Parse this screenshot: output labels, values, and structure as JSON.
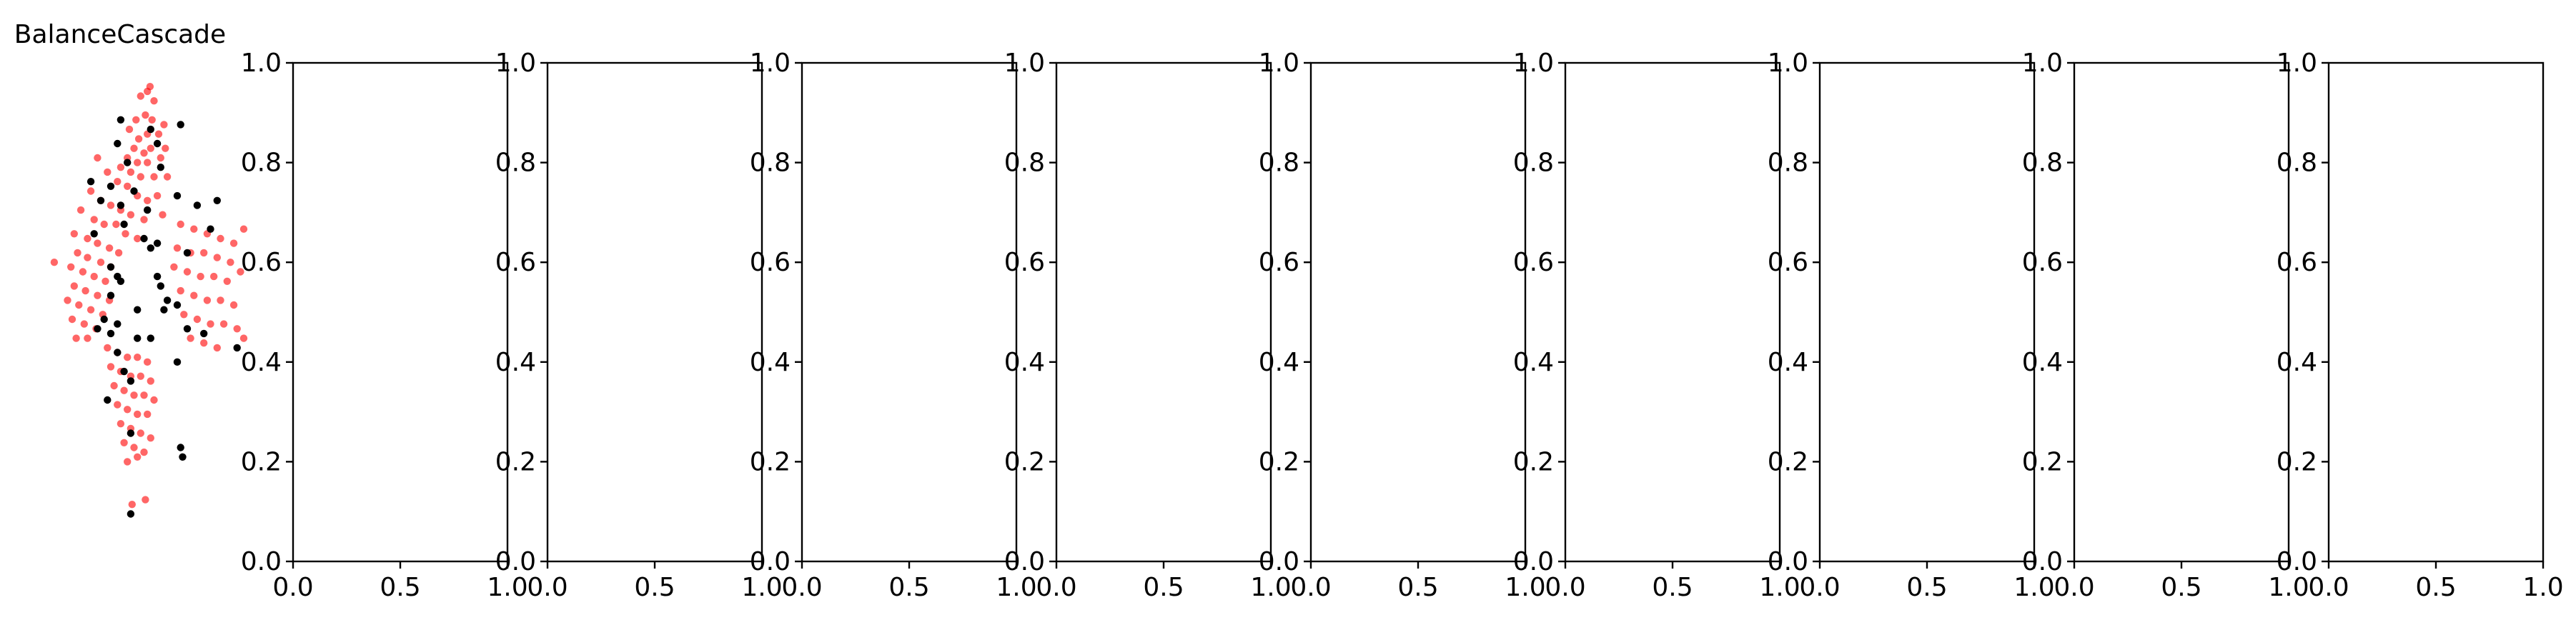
{
  "figure": {
    "background": "#ffffff"
  },
  "chart_data": [
    {
      "type": "scatter",
      "title": "BalanceCascade",
      "axis": "off",
      "xlim": [
        -1.85,
        1.45
      ],
      "ylim": [
        -0.05,
        1.0
      ],
      "colors": {
        "minority": "#000000",
        "majority": "#ff0000"
      },
      "series": [
        {
          "role": "majority",
          "color": "#ff0000",
          "alpha": 0.6,
          "points": [
            [
              -0.11,
              0.95
            ],
            [
              -0.25,
              0.93
            ],
            [
              -0.15,
              0.94
            ],
            [
              -0.05,
              0.92
            ],
            [
              -0.18,
              0.89
            ],
            [
              -0.32,
              0.88
            ],
            [
              -0.08,
              0.88
            ],
            [
              0.1,
              0.87
            ],
            [
              -0.42,
              0.86
            ],
            [
              -0.28,
              0.84
            ],
            [
              -0.15,
              0.85
            ],
            [
              0.02,
              0.85
            ],
            [
              -0.35,
              0.82
            ],
            [
              -0.2,
              0.81
            ],
            [
              -0.1,
              0.82
            ],
            [
              0.12,
              0.82
            ],
            [
              -0.45,
              0.8
            ],
            [
              -0.3,
              0.79
            ],
            [
              -0.15,
              0.79
            ],
            [
              0.05,
              0.8
            ],
            [
              -0.55,
              0.78
            ],
            [
              -0.4,
              0.77
            ],
            [
              -0.25,
              0.76
            ],
            [
              -0.05,
              0.76
            ],
            [
              0.15,
              0.76
            ],
            [
              -0.9,
              0.8
            ],
            [
              -0.75,
              0.77
            ],
            [
              -0.6,
              0.75
            ],
            [
              -0.45,
              0.74
            ],
            [
              -0.3,
              0.72
            ],
            [
              -0.15,
              0.71
            ],
            [
              0.0,
              0.72
            ],
            [
              -1.0,
              0.73
            ],
            [
              -0.85,
              0.71
            ],
            [
              -0.7,
              0.7
            ],
            [
              -0.55,
              0.69
            ],
            [
              -0.4,
              0.68
            ],
            [
              -0.2,
              0.67
            ],
            [
              0.08,
              0.68
            ],
            [
              -1.15,
              0.69
            ],
            [
              -0.95,
              0.67
            ],
            [
              -0.8,
              0.66
            ],
            [
              -0.62,
              0.66
            ],
            [
              -0.48,
              0.64
            ],
            [
              -0.3,
              0.63
            ],
            [
              -1.25,
              0.64
            ],
            [
              -1.05,
              0.63
            ],
            [
              -0.9,
              0.62
            ],
            [
              -0.72,
              0.61
            ],
            [
              -0.58,
              0.6
            ],
            [
              -1.2,
              0.6
            ],
            [
              -1.05,
              0.59
            ],
            [
              -0.85,
              0.58
            ],
            [
              -0.7,
              0.57
            ],
            [
              -1.3,
              0.57
            ],
            [
              -1.12,
              0.56
            ],
            [
              -0.95,
              0.55
            ],
            [
              -0.78,
              0.54
            ],
            [
              -1.55,
              0.58
            ],
            [
              -1.25,
              0.53
            ],
            [
              -1.08,
              0.52
            ],
            [
              -0.9,
              0.51
            ],
            [
              -0.72,
              0.5
            ],
            [
              -1.35,
              0.5
            ],
            [
              -1.18,
              0.49
            ],
            [
              -1.0,
              0.48
            ],
            [
              -0.82,
              0.47
            ],
            [
              -1.28,
              0.46
            ],
            [
              -1.1,
              0.45
            ],
            [
              -0.92,
              0.44
            ],
            [
              -1.22,
              0.42
            ],
            [
              -1.05,
              0.42
            ],
            [
              0.35,
              0.66
            ],
            [
              0.55,
              0.65
            ],
            [
              0.75,
              0.64
            ],
            [
              0.95,
              0.63
            ],
            [
              1.15,
              0.62
            ],
            [
              0.3,
              0.61
            ],
            [
              0.5,
              0.6
            ],
            [
              0.7,
              0.6
            ],
            [
              0.9,
              0.59
            ],
            [
              1.1,
              0.58
            ],
            [
              1.3,
              0.65
            ],
            [
              0.25,
              0.57
            ],
            [
              0.45,
              0.56
            ],
            [
              0.65,
              0.55
            ],
            [
              0.85,
              0.55
            ],
            [
              1.05,
              0.54
            ],
            [
              1.25,
              0.56
            ],
            [
              0.35,
              0.52
            ],
            [
              0.55,
              0.51
            ],
            [
              0.75,
              0.5
            ],
            [
              0.95,
              0.5
            ],
            [
              1.15,
              0.49
            ],
            [
              0.4,
              0.47
            ],
            [
              0.6,
              0.46
            ],
            [
              0.8,
              0.45
            ],
            [
              1.0,
              0.45
            ],
            [
              1.2,
              0.44
            ],
            [
              0.5,
              0.42
            ],
            [
              0.7,
              0.41
            ],
            [
              0.9,
              0.4
            ],
            [
              1.3,
              0.42
            ],
            [
              -0.75,
              0.4
            ],
            [
              -0.6,
              0.39
            ],
            [
              -0.45,
              0.38
            ],
            [
              -0.3,
              0.38
            ],
            [
              -0.15,
              0.37
            ],
            [
              -0.7,
              0.36
            ],
            [
              -0.55,
              0.35
            ],
            [
              -0.4,
              0.34
            ],
            [
              -0.25,
              0.34
            ],
            [
              -0.1,
              0.33
            ],
            [
              -0.65,
              0.32
            ],
            [
              -0.5,
              0.31
            ],
            [
              -0.35,
              0.3
            ],
            [
              -0.2,
              0.3
            ],
            [
              -0.05,
              0.29
            ],
            [
              -0.6,
              0.28
            ],
            [
              -0.45,
              0.27
            ],
            [
              -0.3,
              0.26
            ],
            [
              -0.15,
              0.26
            ],
            [
              -0.55,
              0.24
            ],
            [
              -0.4,
              0.23
            ],
            [
              -0.25,
              0.22
            ],
            [
              -0.1,
              0.21
            ],
            [
              -0.5,
              0.2
            ],
            [
              -0.35,
              0.19
            ],
            [
              -0.2,
              0.18
            ],
            [
              -0.45,
              0.16
            ],
            [
              -0.3,
              0.17
            ],
            [
              -0.38,
              0.07
            ],
            [
              -0.18,
              0.08
            ]
          ]
        },
        {
          "role": "minority",
          "color": "#000000",
          "alpha": 1.0,
          "points": [
            [
              -0.55,
              0.88
            ],
            [
              0.35,
              0.87
            ],
            [
              -0.1,
              0.86
            ],
            [
              -0.6,
              0.83
            ],
            [
              0.0,
              0.83
            ],
            [
              -0.45,
              0.79
            ],
            [
              0.05,
              0.78
            ],
            [
              -1.0,
              0.75
            ],
            [
              -0.7,
              0.74
            ],
            [
              -0.35,
              0.73
            ],
            [
              0.3,
              0.72
            ],
            [
              -0.85,
              0.71
            ],
            [
              -0.55,
              0.7
            ],
            [
              -0.15,
              0.69
            ],
            [
              0.6,
              0.7
            ],
            [
              0.9,
              0.71
            ],
            [
              -0.5,
              0.66
            ],
            [
              0.8,
              0.65
            ],
            [
              -0.95,
              0.64
            ],
            [
              -0.2,
              0.63
            ],
            [
              0.0,
              0.62
            ],
            [
              -0.1,
              0.61
            ],
            [
              0.45,
              0.6
            ],
            [
              -0.7,
              0.57
            ],
            [
              -0.6,
              0.55
            ],
            [
              0.0,
              0.55
            ],
            [
              -0.55,
              0.54
            ],
            [
              0.05,
              0.53
            ],
            [
              -0.7,
              0.51
            ],
            [
              0.15,
              0.5
            ],
            [
              0.3,
              0.49
            ],
            [
              -0.3,
              0.48
            ],
            [
              0.1,
              0.48
            ],
            [
              -0.8,
              0.46
            ],
            [
              -0.6,
              0.45
            ],
            [
              0.45,
              0.44
            ],
            [
              -0.9,
              0.44
            ],
            [
              -0.7,
              0.43
            ],
            [
              0.7,
              0.43
            ],
            [
              -0.3,
              0.42
            ],
            [
              -0.1,
              0.42
            ],
            [
              1.2,
              0.4
            ],
            [
              -0.6,
              0.39
            ],
            [
              0.3,
              0.37
            ],
            [
              -0.5,
              0.35
            ],
            [
              -0.4,
              0.33
            ],
            [
              -0.75,
              0.29
            ],
            [
              -0.4,
              0.22
            ],
            [
              0.35,
              0.19
            ],
            [
              0.38,
              0.17
            ],
            [
              -0.4,
              0.05
            ]
          ]
        }
      ]
    },
    {
      "type": "scatter",
      "title": "",
      "xlim": [
        0.0,
        1.0
      ],
      "ylim": [
        0.0,
        1.0
      ],
      "xticks": [
        "0.0",
        "0.5",
        "1.0"
      ],
      "yticks": [
        "0.0",
        "0.2",
        "0.4",
        "0.6",
        "0.8",
        "1.0"
      ],
      "series": []
    },
    {
      "type": "scatter",
      "title": "",
      "xlim": [
        0.0,
        1.0
      ],
      "ylim": [
        0.0,
        1.0
      ],
      "xticks": [
        "0.0",
        "0.5",
        "1.0"
      ],
      "yticks": [
        "0.0",
        "0.2",
        "0.4",
        "0.6",
        "0.8",
        "1.0"
      ],
      "series": []
    },
    {
      "type": "scatter",
      "title": "",
      "xlim": [
        0.0,
        1.0
      ],
      "ylim": [
        0.0,
        1.0
      ],
      "xticks": [
        "0.0",
        "0.5",
        "1.0"
      ],
      "yticks": [
        "0.0",
        "0.2",
        "0.4",
        "0.6",
        "0.8",
        "1.0"
      ],
      "series": []
    },
    {
      "type": "scatter",
      "title": "",
      "xlim": [
        0.0,
        1.0
      ],
      "ylim": [
        0.0,
        1.0
      ],
      "xticks": [
        "0.0",
        "0.5",
        "1.0"
      ],
      "yticks": [
        "0.0",
        "0.2",
        "0.4",
        "0.6",
        "0.8",
        "1.0"
      ],
      "series": []
    },
    {
      "type": "scatter",
      "title": "",
      "xlim": [
        0.0,
        1.0
      ],
      "ylim": [
        0.0,
        1.0
      ],
      "xticks": [
        "0.0",
        "0.5",
        "1.0"
      ],
      "yticks": [
        "0.0",
        "0.2",
        "0.4",
        "0.6",
        "0.8",
        "1.0"
      ],
      "series": []
    },
    {
      "type": "scatter",
      "title": "",
      "xlim": [
        0.0,
        1.0
      ],
      "ylim": [
        0.0,
        1.0
      ],
      "xticks": [
        "0.0",
        "0.5",
        "1.0"
      ],
      "yticks": [
        "0.0",
        "0.2",
        "0.4",
        "0.6",
        "0.8",
        "1.0"
      ],
      "series": []
    },
    {
      "type": "scatter",
      "title": "",
      "xlim": [
        0.0,
        1.0
      ],
      "ylim": [
        0.0,
        1.0
      ],
      "xticks": [
        "0.0",
        "0.5",
        "1.0"
      ],
      "yticks": [
        "0.0",
        "0.2",
        "0.4",
        "0.6",
        "0.8",
        "1.0"
      ],
      "series": []
    },
    {
      "type": "scatter",
      "title": "",
      "xlim": [
        0.0,
        1.0
      ],
      "ylim": [
        0.0,
        1.0
      ],
      "xticks": [
        "0.0",
        "0.5",
        "1.0"
      ],
      "yticks": [
        "0.0",
        "0.2",
        "0.4",
        "0.6",
        "0.8",
        "1.0"
      ],
      "series": []
    },
    {
      "type": "scatter",
      "title": "",
      "xlim": [
        0.0,
        1.0
      ],
      "ylim": [
        0.0,
        1.0
      ],
      "xticks": [
        "0.0",
        "0.5",
        "1.0"
      ],
      "yticks": [
        "0.0",
        "0.2",
        "0.4",
        "0.6",
        "0.8",
        "1.0"
      ],
      "series": []
    }
  ]
}
